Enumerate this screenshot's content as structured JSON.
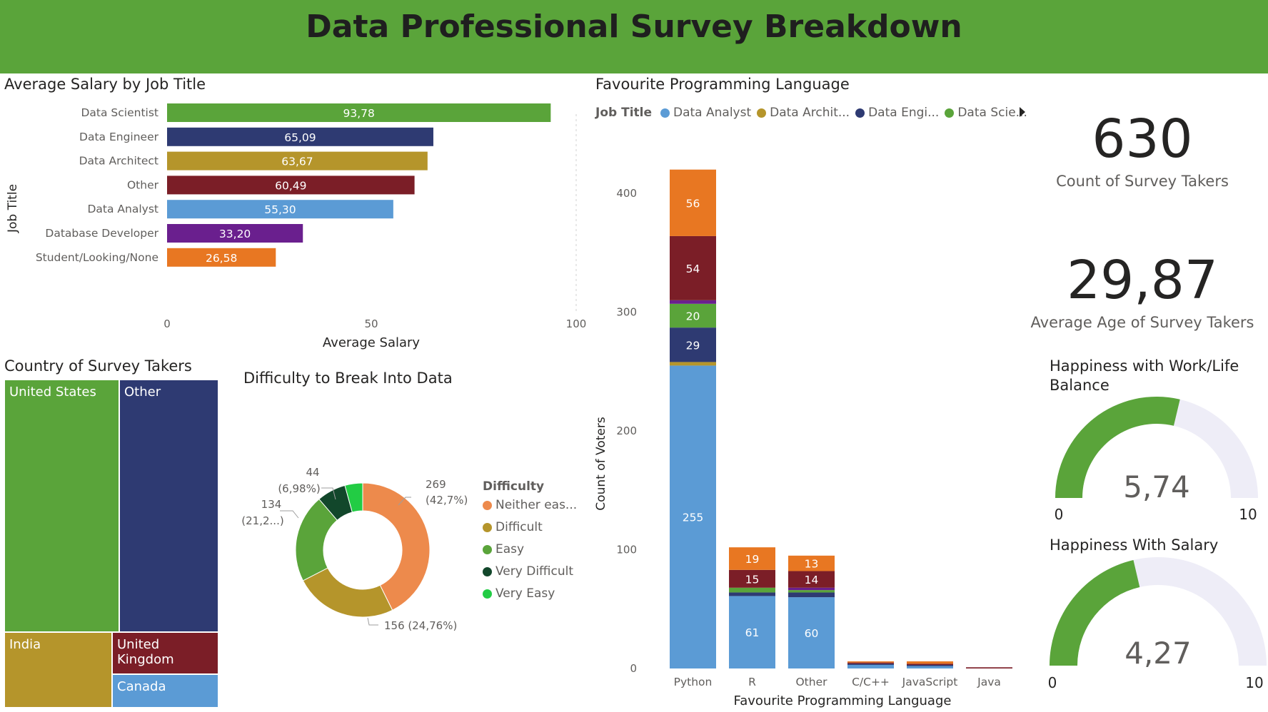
{
  "header": {
    "title": "Data Professional Survey Breakdown"
  },
  "salary_chart": {
    "title": "Average Salary by Job Title",
    "xlabel": "Average Salary",
    "ylabel": "Job Title",
    "ticks": [
      "0",
      "50",
      "100"
    ]
  },
  "language_chart": {
    "title": "Favourite Programming Language",
    "legend_title": "Job Title",
    "legend": [
      {
        "label": "Data Analyst",
        "color": "#5b9bd5"
      },
      {
        "label": "Data Archit...",
        "color": "#b5952b"
      },
      {
        "label": "Data Engi...",
        "color": "#2e3a72"
      },
      {
        "label": "Data Scie...",
        "color": "#5aa43a"
      }
    ],
    "xlabel": "Favourite Programming Language",
    "ylabel": "Count of Voters",
    "yticks": [
      "0",
      "100",
      "200",
      "300",
      "400"
    ]
  },
  "country_chart": {
    "title": "Country of Survey Takers",
    "cells": [
      "United States",
      "Other",
      "India",
      "United Kingdom",
      "Canada"
    ]
  },
  "difficulty_chart": {
    "title": "Difficulty to Break Into Data",
    "legend_title": "Difficulty",
    "legend": [
      "Neither eas...",
      "Difficult",
      "Easy",
      "Very Difficult",
      "Very Easy"
    ],
    "labels": {
      "neither_a": "269",
      "neither_b": "(42,7%)",
      "difficult": "156 (24,76%)",
      "easy_a": "134",
      "easy_b": "(21,2...)",
      "vdiff_a": "44",
      "vdiff_b": "(6,98%)"
    }
  },
  "cards": {
    "count_value": "630",
    "count_label": "Count of Survey Takers",
    "age_value": "29,87",
    "age_label": "Average Age of Survey Takers"
  },
  "gauges": {
    "worklife_title_1": "Happiness with Work/Life",
    "worklife_title_2": "Balance",
    "worklife_value": "5,74",
    "worklife_min": "0",
    "worklife_max": "10",
    "salary_title": "Happiness With Salary",
    "salary_value": "4,27",
    "salary_min": "0",
    "salary_max": "10"
  },
  "chart_data": [
    {
      "type": "bar",
      "orientation": "horizontal",
      "title": "Average Salary by Job Title",
      "xlabel": "Average Salary",
      "ylabel": "Job Title",
      "xlim": [
        0,
        100
      ],
      "categories": [
        "Data Scientist",
        "Data Engineer",
        "Data Architect",
        "Other",
        "Data Analyst",
        "Database Developer",
        "Student/Looking/None"
      ],
      "values": [
        93.78,
        65.09,
        63.67,
        60.49,
        55.3,
        33.2,
        26.58
      ],
      "value_labels": [
        "93,78",
        "65,09",
        "63,67",
        "60,49",
        "55,30",
        "33,20",
        "26,58"
      ],
      "colors": [
        "#5aa43a",
        "#2e3a72",
        "#b5952b",
        "#7b1e27",
        "#5b9bd5",
        "#6a1f8e",
        "#e87722"
      ]
    },
    {
      "type": "bar",
      "stacked": true,
      "title": "Favourite Programming Language",
      "xlabel": "Favourite Programming Language",
      "ylabel": "Count of Voters",
      "ylim": [
        0,
        420
      ],
      "categories": [
        "Python",
        "R",
        "Other",
        "C/C++",
        "JavaScript",
        "Java"
      ],
      "series": [
        {
          "name": "Data Analyst",
          "color": "#5b9bd5",
          "values": [
            255,
            61,
            60,
            3,
            2,
            0
          ]
        },
        {
          "name": "Data Architect",
          "color": "#b5952b",
          "values": [
            3,
            0,
            0,
            0,
            0,
            0
          ]
        },
        {
          "name": "Data Engineer",
          "color": "#2e3a72",
          "values": [
            29,
            3,
            4,
            1,
            1,
            0
          ]
        },
        {
          "name": "Data Scientist",
          "color": "#5aa43a",
          "values": [
            20,
            4,
            2,
            0,
            0,
            0
          ]
        },
        {
          "name": "Database Developer",
          "color": "#6a1f8e",
          "values": [
            3,
            0,
            2,
            0,
            0,
            0
          ]
        },
        {
          "name": "Other",
          "color": "#7b1e27",
          "values": [
            54,
            15,
            14,
            1,
            1,
            1
          ]
        },
        {
          "name": "Student/Looking/None",
          "color": "#e87722",
          "values": [
            56,
            19,
            13,
            1,
            2,
            0
          ]
        }
      ],
      "data_labels": [
        {
          "category": "Python",
          "series": "Data Analyst",
          "text": "255"
        },
        {
          "category": "Python",
          "series": "Data Engineer",
          "text": "29"
        },
        {
          "category": "Python",
          "series": "Data Scientist",
          "text": "20"
        },
        {
          "category": "Python",
          "series": "Other",
          "text": "54"
        },
        {
          "category": "Python",
          "series": "Student/Looking/None",
          "text": "56"
        },
        {
          "category": "R",
          "series": "Data Analyst",
          "text": "61"
        },
        {
          "category": "R",
          "series": "Other",
          "text": "15"
        },
        {
          "category": "R",
          "series": "Student/Looking/None",
          "text": "19"
        },
        {
          "category": "Other",
          "series": "Data Analyst",
          "text": "60"
        },
        {
          "category": "Other",
          "series": "Other",
          "text": "14"
        },
        {
          "category": "Other",
          "series": "Student/Looking/None",
          "text": "13"
        }
      ]
    },
    {
      "type": "treemap",
      "title": "Country of Survey Takers",
      "categories": [
        "United States",
        "Other",
        "India",
        "United Kingdom",
        "Canada"
      ],
      "colors": [
        "#5aa43a",
        "#2e3a72",
        "#b5952b",
        "#7b1e27",
        "#5b9bd5"
      ]
    },
    {
      "type": "pie",
      "donut": true,
      "title": "Difficulty to Break Into Data",
      "categories": [
        "Neither eas...",
        "Difficult",
        "Easy",
        "Very Difficult",
        "Very Easy"
      ],
      "values": [
        269,
        156,
        134,
        44,
        27
      ],
      "colors": [
        "#ed8a4c",
        "#b5952b",
        "#5aa43a",
        "#12472b",
        "#22cc44"
      ]
    },
    {
      "type": "gauge",
      "title": "Happiness with Work/Life Balance",
      "value": 5.74,
      "min": 0,
      "max": 10
    },
    {
      "type": "gauge",
      "title": "Happiness With Salary",
      "value": 4.27,
      "min": 0,
      "max": 10
    }
  ]
}
